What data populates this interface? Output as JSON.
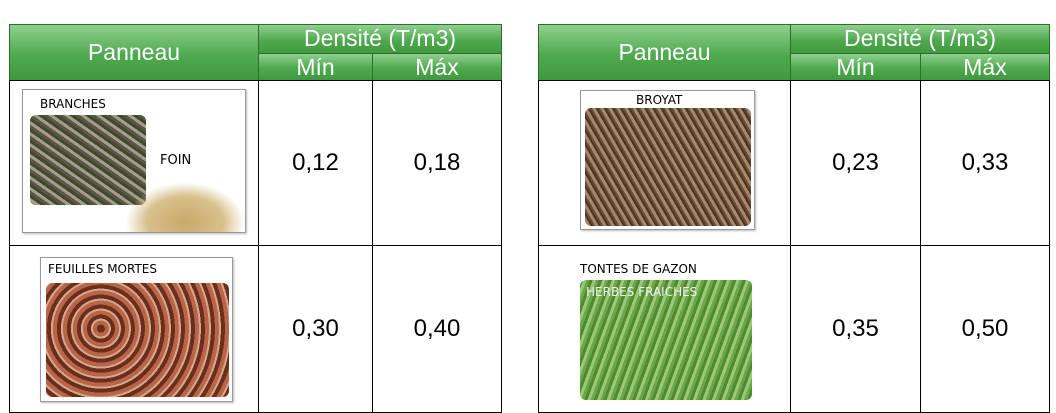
{
  "tables": [
    {
      "header": {
        "panneau": "Panneau",
        "densite": "Densité (T/m3)",
        "min": "Mín",
        "max": "Máx"
      },
      "rows": [
        {
          "labels": [
            "BRANCHES",
            "FOIN"
          ],
          "min": "0,12",
          "max": "0,18"
        },
        {
          "labels": [
            "FEUILLES MORTES"
          ],
          "min": "0,30",
          "max": "0,40"
        }
      ]
    },
    {
      "header": {
        "panneau": "Panneau",
        "densite": "Densité (T/m3)",
        "min": "Mín",
        "max": "Máx"
      },
      "rows": [
        {
          "labels": [
            "BROYAT"
          ],
          "min": "0,23",
          "max": "0,33"
        },
        {
          "labels": [
            "TONTES DE GAZON",
            "HERBES FRAICHES"
          ],
          "min": "0,35",
          "max": "0,50"
        }
      ]
    }
  ]
}
